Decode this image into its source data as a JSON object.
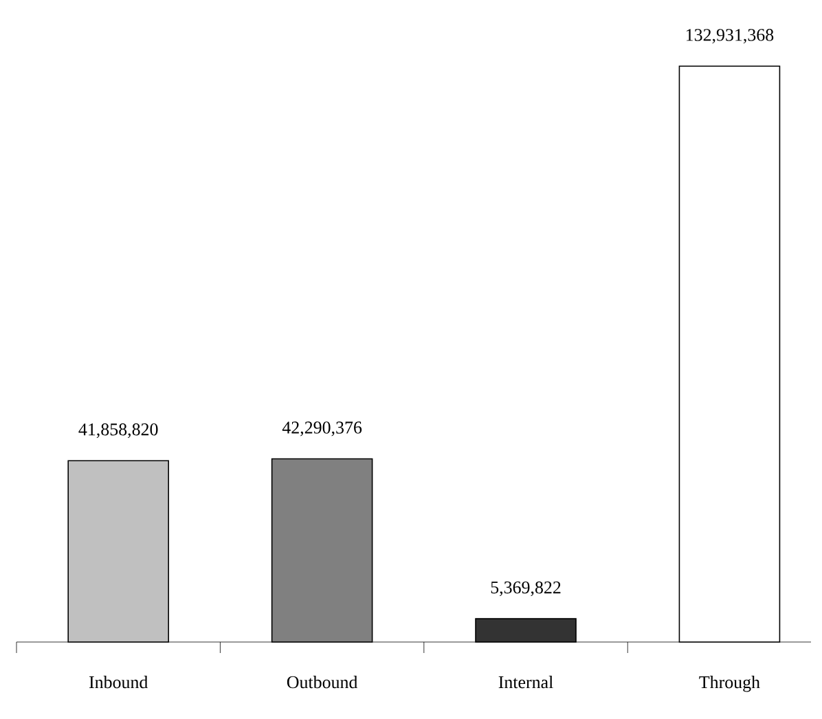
{
  "chart_data": {
    "type": "bar",
    "categories": [
      "Inbound",
      "Outbound",
      "Internal",
      "Through"
    ],
    "values": [
      41858820,
      42290376,
      5369822,
      132931368
    ],
    "colors": [
      "#c0c0c0",
      "#808080",
      "#333333",
      "#ffffff"
    ],
    "value_labels": [
      "41,858,820",
      "42,290,376",
      "5,369,822",
      "132,931,368"
    ]
  }
}
